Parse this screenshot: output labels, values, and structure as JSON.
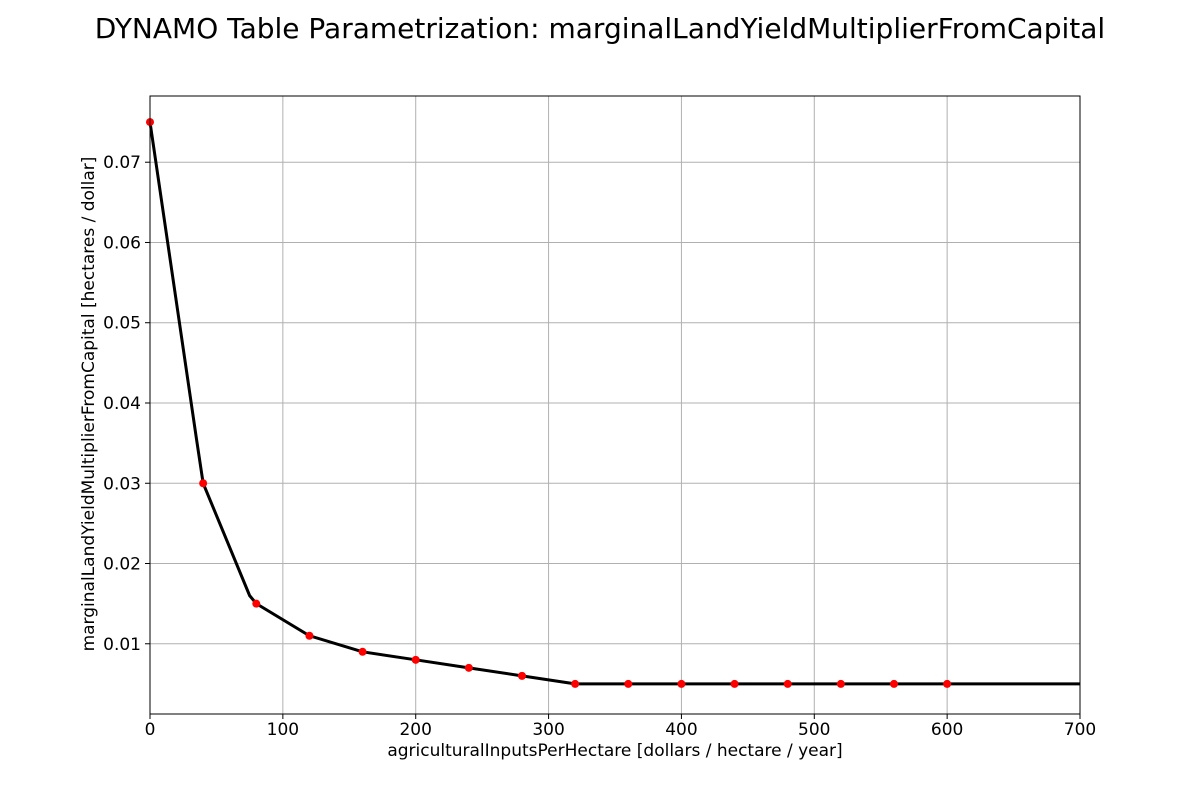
{
  "chart_data": {
    "type": "line",
    "title": "DYNAMO Table Parametrization: marginalLandYieldMultiplierFromCapital",
    "xlabel": "agriculturalInputsPerHectare [dollars / hectare / year]",
    "ylabel": "marginalLandYieldMultiplierFromCapital [hectares / dollar]",
    "xlim": [
      0,
      700
    ],
    "ylim": [
      0.00125,
      0.07825
    ],
    "grid": true,
    "x_ticks": [
      0,
      100,
      200,
      300,
      400,
      500,
      600,
      700
    ],
    "x_tick_labels": [
      "0",
      "100",
      "200",
      "300",
      "400",
      "500",
      "600",
      "700"
    ],
    "y_ticks": [
      0.01,
      0.02,
      0.03,
      0.04,
      0.05,
      0.06,
      0.07
    ],
    "y_tick_labels": [
      "0.01",
      "0.02",
      "0.03",
      "0.04",
      "0.05",
      "0.06",
      "0.07"
    ],
    "series": [
      {
        "kind": "interpolated-line",
        "color": "#000000",
        "x": [
          0,
          35,
          40,
          75,
          80,
          120,
          160,
          200,
          240,
          280,
          320,
          360,
          400,
          440,
          480,
          520,
          560,
          600,
          700
        ],
        "y": [
          0.075,
          0.0355,
          0.03,
          0.016,
          0.015,
          0.011,
          0.009,
          0.008,
          0.007,
          0.006,
          0.005,
          0.005,
          0.005,
          0.005,
          0.005,
          0.005,
          0.005,
          0.005,
          0.005
        ]
      },
      {
        "kind": "table-points",
        "color": "#ff0000",
        "x": [
          0,
          40,
          80,
          120,
          160,
          200,
          240,
          280,
          320,
          360,
          400,
          440,
          480,
          520,
          560,
          600
        ],
        "y": [
          0.075,
          0.03,
          0.015,
          0.011,
          0.009,
          0.008,
          0.007,
          0.006,
          0.005,
          0.005,
          0.005,
          0.005,
          0.005,
          0.005,
          0.005,
          0.005
        ]
      }
    ]
  }
}
